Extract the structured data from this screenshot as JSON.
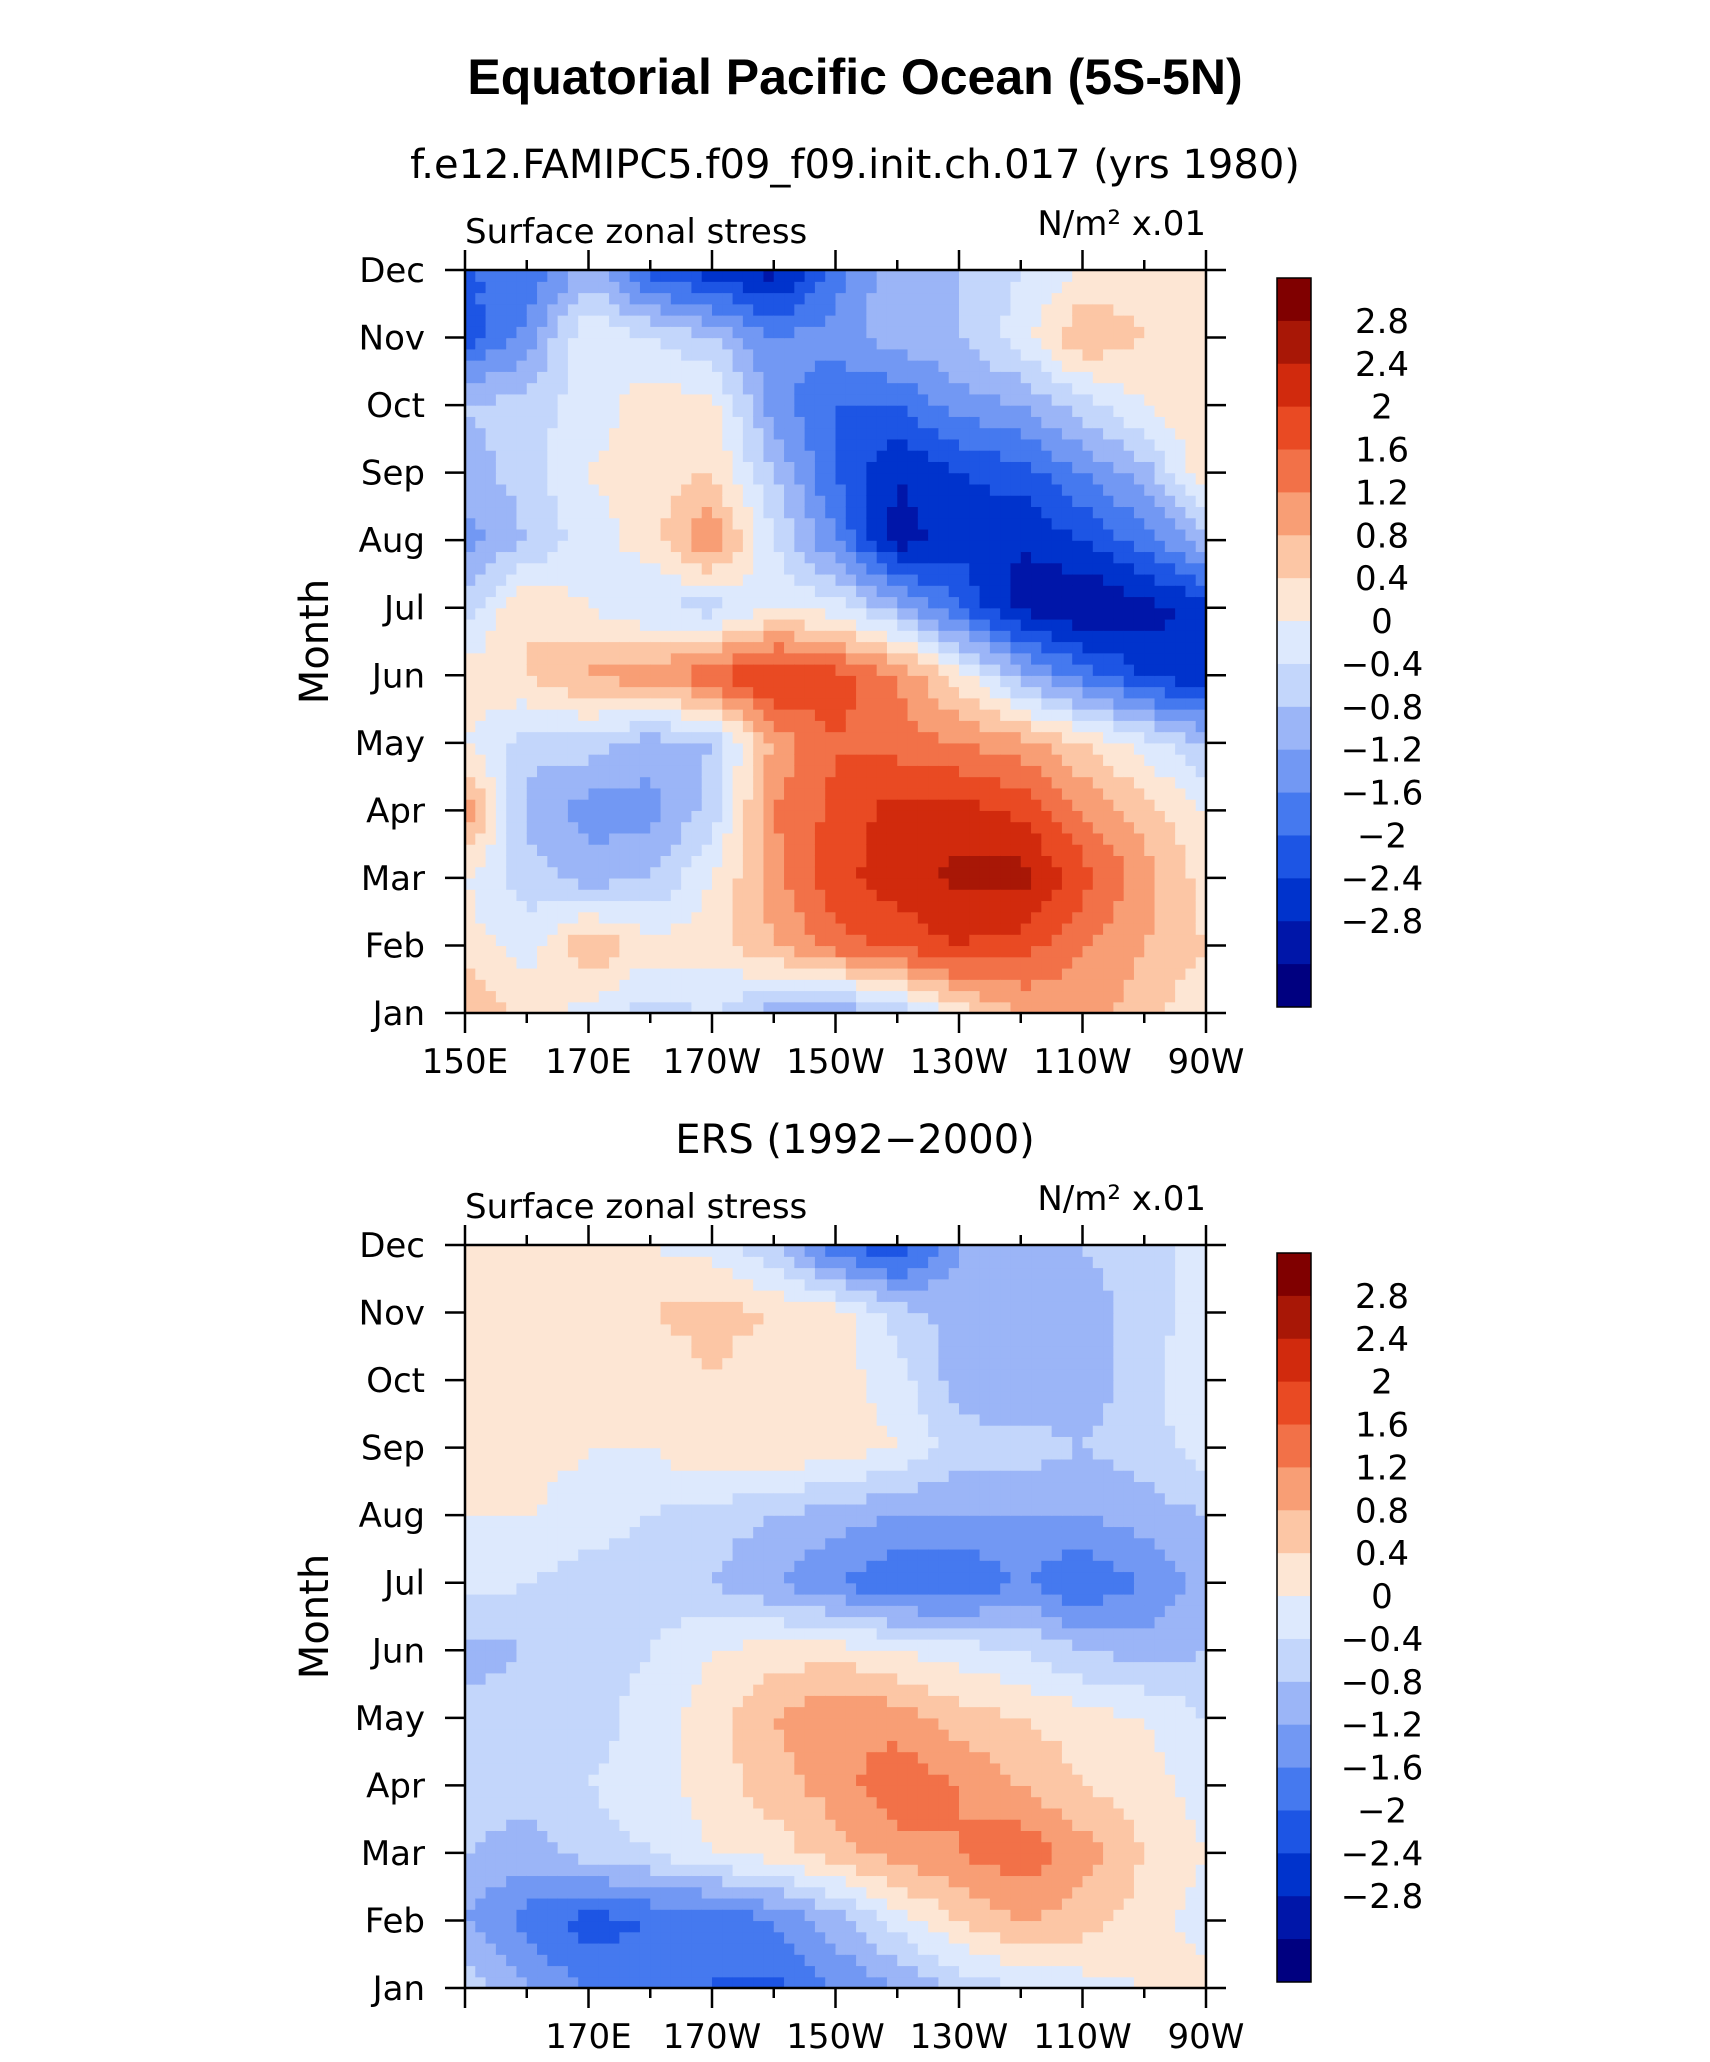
{
  "title": "Equatorial Pacific Ocean (5S-5N)",
  "colorbar_levels": [
    "2.8",
    "2.4",
    "2",
    "1.6",
    "1.2",
    "0.8",
    "0.4",
    "0",
    "−0.4",
    "−0.8",
    "−1.2",
    "−1.6",
    "−2",
    "−2.4",
    "−2.8"
  ],
  "colors": [
    "#000080",
    "#0016a9",
    "#0033cc",
    "#1d55e4",
    "#4579ef",
    "#7298f3",
    "#9bb5f7",
    "#c3d6fb",
    "#dde9fd",
    "#fde6d4",
    "#fcc6a5",
    "#f89e75",
    "#f27148",
    "#e94a23",
    "#d12a0d",
    "#a81706",
    "#800000"
  ],
  "chart_data": [
    {
      "type": "heatmap",
      "subtitle": "f.e12.FAMIPC5.f09_f09.init.ch.017 (yrs 1980)",
      "variable_label": "Surface zonal stress",
      "units_label": "N/m² x.01",
      "ylabel": "Month",
      "y_categories": [
        "Jan",
        "Feb",
        "Mar",
        "Apr",
        "May",
        "Jun",
        "Jul",
        "Aug",
        "Sep",
        "Oct",
        "Nov",
        "Dec"
      ],
      "x_tick_labels": [
        "150E",
        "170E",
        "170W",
        "150W",
        "130W",
        "110W",
        "90W"
      ],
      "xlim": [
        150,
        270
      ],
      "levels": [
        -2.8,
        -2.4,
        -2,
        -1.6,
        -1.2,
        -0.8,
        -0.4,
        0,
        0.4,
        0.8,
        1.2,
        1.6,
        2,
        2.4,
        2.8
      ],
      "x": [
        150,
        160,
        170,
        180,
        190,
        200,
        210,
        220,
        230,
        240,
        250,
        260,
        270
      ],
      "values": [
        [
          1.2,
          0.6,
          0.2,
          -0.2,
          0.0,
          -0.6,
          -0.8,
          -0.3,
          0.6,
          1.2,
          1.4,
          1.0,
          0.4
        ],
        [
          0.6,
          0.2,
          1.2,
          0.6,
          0.6,
          1.2,
          1.8,
          2.1,
          2.4,
          2.2,
          1.6,
          1.2,
          0.8
        ],
        [
          0.4,
          -0.2,
          -0.6,
          -0.4,
          0.4,
          1.4,
          2.3,
          2.6,
          2.9,
          3.0,
          2.2,
          1.4,
          0.6
        ],
        [
          1.6,
          -0.6,
          -1.0,
          -1.0,
          -0.2,
          1.6,
          2.1,
          2.6,
          2.6,
          2.3,
          1.6,
          1.0,
          0.4
        ],
        [
          0.4,
          -0.2,
          -0.2,
          -0.6,
          -0.4,
          1.3,
          2.0,
          1.8,
          1.6,
          1.4,
          0.8,
          0.2,
          -0.4
        ],
        [
          0.6,
          0.8,
          1.3,
          1.4,
          2.0,
          2.5,
          2.2,
          1.6,
          0.6,
          -0.6,
          -1.4,
          -2.0,
          -2.4
        ],
        [
          -0.2,
          0.8,
          0.4,
          0.0,
          -0.2,
          0.4,
          0.2,
          -0.6,
          -1.6,
          -2.5,
          -2.9,
          -2.6,
          -2.2
        ],
        [
          -1.0,
          -0.4,
          0.2,
          0.6,
          1.6,
          0.0,
          -1.2,
          -2.6,
          -2.2,
          -2.4,
          -2.0,
          -1.4,
          -0.6
        ],
        [
          -0.6,
          -0.2,
          0.4,
          0.6,
          0.8,
          -0.4,
          -1.6,
          -2.4,
          -2.0,
          -1.8,
          -1.2,
          -0.6,
          0.8
        ],
        [
          -0.4,
          -0.2,
          0.2,
          0.6,
          0.6,
          -1.0,
          -1.6,
          -1.6,
          -1.0,
          -0.8,
          -0.2,
          0.4,
          0.8
        ],
        [
          -1.8,
          -1.0,
          0.4,
          0.0,
          -0.4,
          -1.2,
          -1.0,
          -0.6,
          -0.4,
          0.2,
          1.2,
          0.8,
          0.6
        ],
        [
          -1.6,
          -1.6,
          -0.6,
          -1.8,
          -2.2,
          -2.6,
          -1.4,
          -0.4,
          -0.4,
          0.0,
          0.4,
          0.6,
          0.8
        ]
      ]
    },
    {
      "type": "heatmap",
      "subtitle": "ERS (1992−2000)",
      "variable_label": "Surface zonal stress",
      "units_label": "N/m² x.01",
      "ylabel": "Month",
      "y_categories": [
        "Jan",
        "Feb",
        "Mar",
        "Apr",
        "May",
        "Jun",
        "Jul",
        "Aug",
        "Sep",
        "Oct",
        "Nov",
        "Dec"
      ],
      "x_tick_labels": [
        "170E",
        "170W",
        "150W",
        "130W",
        "110W",
        "90W"
      ],
      "xlim": [
        150,
        270
      ],
      "levels": [
        -2.8,
        -2.4,
        -2,
        -1.6,
        -1.2,
        -0.8,
        -0.4,
        0,
        0.4,
        0.8,
        1.2,
        1.6,
        2,
        2.4,
        2.8
      ],
      "x": [
        150,
        160,
        170,
        180,
        190,
        200,
        210,
        220,
        230,
        240,
        250,
        260,
        270
      ],
      "values": [
        [
          -0.2,
          -0.8,
          -1.2,
          -1.4,
          -1.6,
          -1.7,
          -1.2,
          -0.8,
          -0.3,
          0.0,
          0.2,
          0.4,
          0.6
        ],
        [
          -0.8,
          -1.4,
          -1.8,
          -1.6,
          -1.6,
          -1.2,
          -0.6,
          0.2,
          0.8,
          1.2,
          1.0,
          0.6,
          0.2
        ],
        [
          -0.4,
          -0.6,
          -0.2,
          0.0,
          0.4,
          0.6,
          1.0,
          1.4,
          1.6,
          1.9,
          1.4,
          0.8,
          0.4
        ],
        [
          -0.2,
          -0.2,
          0.0,
          0.2,
          0.6,
          1.0,
          1.4,
          1.9,
          1.6,
          1.2,
          0.8,
          0.6,
          0.2
        ],
        [
          -0.2,
          -0.2,
          -0.2,
          0.2,
          0.6,
          1.2,
          1.6,
          1.4,
          1.0,
          0.8,
          0.6,
          0.4,
          0.0
        ],
        [
          -0.6,
          -0.4,
          -0.2,
          0.0,
          0.4,
          0.6,
          0.6,
          0.4,
          0.2,
          0.0,
          -0.4,
          -0.6,
          -0.4
        ],
        [
          0.2,
          0.0,
          -0.2,
          -0.2,
          -0.4,
          -0.8,
          -1.2,
          -1.6,
          -1.6,
          -1.2,
          -1.6,
          -1.2,
          -0.6
        ],
        [
          0.4,
          0.4,
          0.2,
          0.0,
          -0.2,
          -0.4,
          -0.6,
          -0.8,
          -0.8,
          -0.8,
          -0.8,
          -0.6,
          -0.4
        ],
        [
          0.4,
          0.6,
          0.4,
          0.4,
          0.8,
          0.8,
          0.6,
          0.4,
          -0.2,
          -0.2,
          -0.4,
          -0.2,
          0.2
        ],
        [
          0.4,
          0.6,
          0.6,
          0.4,
          0.8,
          0.4,
          0.6,
          0.2,
          -0.6,
          -0.8,
          -0.6,
          -0.2,
          0.4
        ],
        [
          0.6,
          0.4,
          0.6,
          0.8,
          1.0,
          0.8,
          0.6,
          -0.2,
          -0.6,
          -0.8,
          -0.6,
          -0.2,
          0.2
        ],
        [
          0.6,
          0.8,
          0.6,
          0.4,
          0.2,
          -0.4,
          -1.6,
          -2.0,
          -0.8,
          -0.6,
          -0.4,
          -0.2,
          0.2
        ]
      ]
    }
  ]
}
